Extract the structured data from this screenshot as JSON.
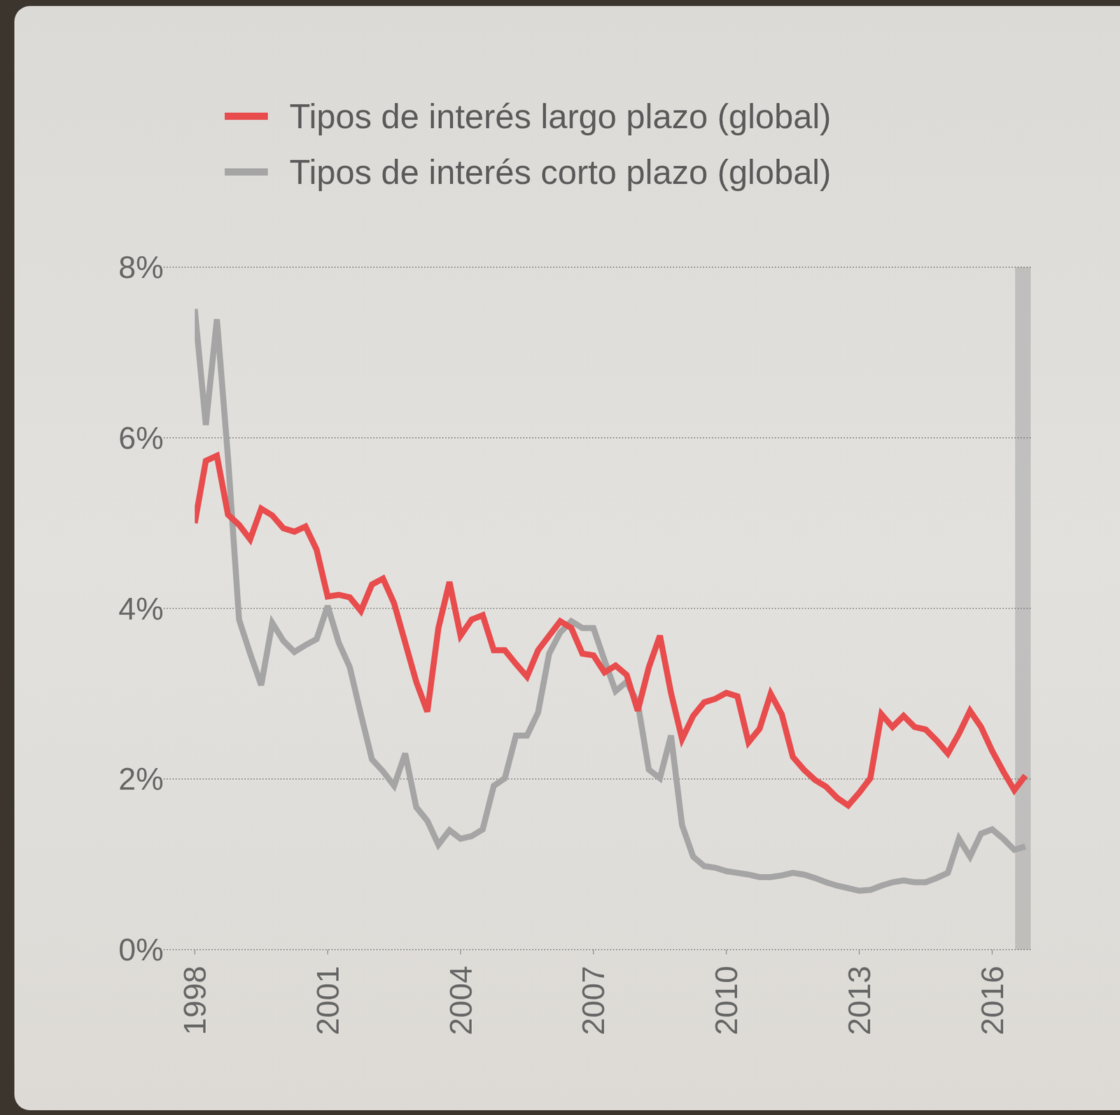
{
  "chart_data": {
    "type": "line",
    "x": [
      1998,
      1998.25,
      1998.5,
      1998.75,
      1999,
      1999.25,
      1999.5,
      1999.75,
      2000,
      2000.25,
      2000.5,
      2000.75,
      2001,
      2001.25,
      2001.5,
      2001.75,
      2002,
      2002.25,
      2002.5,
      2002.75,
      2003,
      2003.25,
      2003.5,
      2003.75,
      2004,
      2004.25,
      2004.5,
      2004.75,
      2005,
      2005.25,
      2005.5,
      2005.75,
      2006,
      2006.25,
      2006.5,
      2006.75,
      2007,
      2007.25,
      2007.5,
      2007.75,
      2008,
      2008.25,
      2008.5,
      2008.75,
      2009,
      2009.25,
      2009.5,
      2009.75,
      2010,
      2010.25,
      2010.5,
      2010.75,
      2011,
      2011.25,
      2011.5,
      2011.75,
      2012,
      2012.25,
      2012.5,
      2012.75,
      2013,
      2013.25,
      2013.5,
      2013.75,
      2014,
      2014.25,
      2014.5,
      2014.75,
      2015,
      2015.25,
      2015.5,
      2015.75,
      2016,
      2016.25,
      2016.5,
      2016.75
    ],
    "series": [
      {
        "name": "Tipos de interés largo plazo (global)",
        "color": "#e84c4d",
        "values": [
          5.0,
          5.73,
          5.79,
          5.1,
          4.98,
          4.81,
          5.17,
          5.09,
          4.94,
          4.9,
          4.96,
          4.69,
          4.14,
          4.16,
          4.13,
          3.97,
          4.28,
          4.35,
          4.06,
          3.6,
          3.14,
          2.79,
          3.77,
          4.31,
          3.68,
          3.87,
          3.92,
          3.51,
          3.51,
          3.35,
          3.2,
          3.51,
          3.68,
          3.85,
          3.77,
          3.47,
          3.45,
          3.25,
          3.33,
          3.22,
          2.8,
          3.31,
          3.68,
          3.01,
          2.47,
          2.74,
          2.9,
          2.94,
          3.01,
          2.97,
          2.43,
          2.59,
          3.0,
          2.76,
          2.26,
          2.11,
          1.99,
          1.91,
          1.78,
          1.69,
          1.84,
          2.01,
          2.76,
          2.61,
          2.74,
          2.61,
          2.58,
          2.45,
          2.3,
          2.53,
          2.8,
          2.61,
          2.33,
          2.09,
          1.87,
          2.04
        ]
      },
      {
        "name": "Tipos de interés corto plazo (global)",
        "color": "#a5a5a5",
        "values": [
          7.51,
          6.15,
          7.39,
          5.77,
          3.87,
          3.47,
          3.1,
          3.83,
          3.62,
          3.49,
          3.57,
          3.64,
          4.03,
          3.6,
          3.31,
          2.76,
          2.23,
          2.09,
          1.92,
          2.3,
          1.67,
          1.51,
          1.23,
          1.4,
          1.3,
          1.33,
          1.41,
          1.92,
          2.01,
          2.51,
          2.51,
          2.78,
          3.47,
          3.72,
          3.85,
          3.77,
          3.77,
          3.39,
          3.03,
          3.14,
          2.89,
          2.11,
          2.01,
          2.51,
          1.46,
          1.09,
          0.98,
          0.96,
          0.92,
          0.9,
          0.88,
          0.85,
          0.85,
          0.87,
          0.9,
          0.88,
          0.84,
          0.79,
          0.75,
          0.72,
          0.69,
          0.7,
          0.75,
          0.79,
          0.81,
          0.79,
          0.79,
          0.84,
          0.9,
          1.3,
          1.09,
          1.36,
          1.41,
          1.3,
          1.17,
          1.21
        ]
      }
    ],
    "xlim": [
      1998,
      2016.87
    ],
    "xticks": [
      1998,
      2001,
      2004,
      2007,
      2010,
      2013,
      2016
    ],
    "ylim": [
      0,
      8
    ],
    "yticks": [
      {
        "value": 0,
        "label": "0%"
      },
      {
        "value": 2,
        "label": "2%"
      },
      {
        "value": 4,
        "label": "4%"
      },
      {
        "value": 6,
        "label": "6%"
      },
      {
        "value": 8,
        "label": "8%"
      }
    ],
    "grid": true,
    "legend": "top"
  }
}
